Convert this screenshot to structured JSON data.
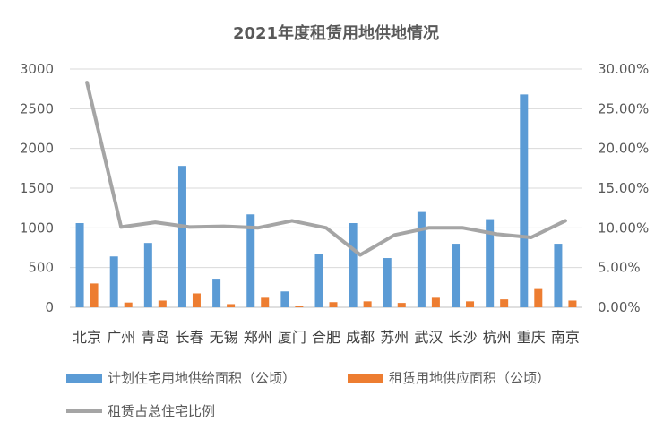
{
  "chart_data": {
    "type": "bar",
    "title": "2021年度租赁用地供地情况",
    "categories": [
      "北京",
      "广州",
      "青岛",
      "长春",
      "无锡",
      "郑州",
      "厦门",
      "合肥",
      "成都",
      "苏州",
      "武汉",
      "长沙",
      "杭州",
      "重庆",
      "南京"
    ],
    "series": [
      {
        "name": "计划住宅用地供给面积（公顷）",
        "type": "bar",
        "axis": "left",
        "color": "#5B9BD5",
        "values": [
          1060,
          640,
          810,
          1780,
          360,
          1170,
          200,
          670,
          1060,
          620,
          1200,
          800,
          1110,
          2680,
          800
        ]
      },
      {
        "name": "租赁用地供应面积（公顷）",
        "type": "bar",
        "axis": "left",
        "color": "#ED7D31",
        "values": [
          300,
          60,
          85,
          175,
          40,
          120,
          15,
          65,
          75,
          55,
          120,
          75,
          100,
          230,
          85
        ]
      },
      {
        "name": "租赁占总住宅比例",
        "type": "line",
        "axis": "right",
        "color": "#A5A5A5",
        "values": [
          0.283,
          0.101,
          0.107,
          0.101,
          0.102,
          0.1,
          0.109,
          0.1,
          0.066,
          0.091,
          0.1,
          0.1,
          0.092,
          0.088,
          0.109
        ]
      }
    ],
    "y_left": {
      "min": 0,
      "max": 3000,
      "ticks": [
        "0",
        "500",
        "1000",
        "1500",
        "2000",
        "2500",
        "3000"
      ]
    },
    "y_right": {
      "min": 0,
      "max": 0.3,
      "ticks": [
        "0.00%",
        "5.00%",
        "10.00%",
        "15.00%",
        "20.00%",
        "25.00%",
        "30.00%"
      ]
    },
    "grid": true,
    "legend_position": "bottom"
  }
}
